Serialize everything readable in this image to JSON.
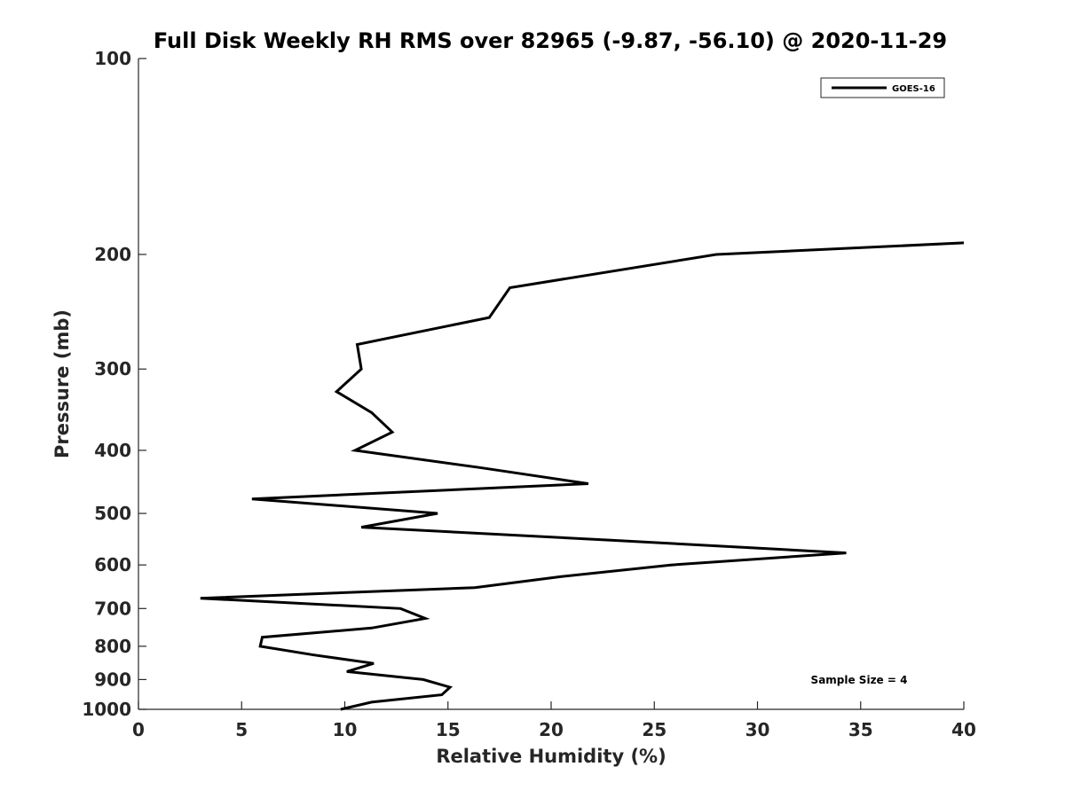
{
  "chart_data": {
    "type": "line",
    "title": "Full Disk Weekly RH RMS over 82965 (-9.87, -56.10) @ 2020-11-29",
    "xlabel": "Relative Humidity (%)",
    "ylabel": "Pressure (mb)",
    "xlim": [
      0,
      40
    ],
    "ylim": [
      100,
      1000
    ],
    "yscale": "log",
    "y_reversed": true,
    "grid": false,
    "legend_position": "top-right",
    "x_ticks": [
      0,
      5,
      10,
      15,
      20,
      25,
      30,
      35,
      40
    ],
    "y_ticks": [
      100,
      200,
      300,
      400,
      500,
      600,
      700,
      800,
      900,
      1000
    ],
    "annotation": "Sample Size = 4",
    "series": [
      {
        "name": "GOES-16",
        "color": "#000000",
        "points": [
          {
            "x": 40.0,
            "y": 192
          },
          {
            "x": 28.0,
            "y": 200
          },
          {
            "x": 18.0,
            "y": 225
          },
          {
            "x": 17.0,
            "y": 250
          },
          {
            "x": 10.6,
            "y": 275
          },
          {
            "x": 10.8,
            "y": 300
          },
          {
            "x": 9.6,
            "y": 325
          },
          {
            "x": 11.3,
            "y": 350
          },
          {
            "x": 12.3,
            "y": 375
          },
          {
            "x": 10.5,
            "y": 400
          },
          {
            "x": 16.5,
            "y": 425
          },
          {
            "x": 21.8,
            "y": 450
          },
          {
            "x": 5.5,
            "y": 475
          },
          {
            "x": 14.5,
            "y": 500
          },
          {
            "x": 10.8,
            "y": 525
          },
          {
            "x": 23.0,
            "y": 550
          },
          {
            "x": 34.3,
            "y": 575
          },
          {
            "x": 25.8,
            "y": 600
          },
          {
            "x": 20.5,
            "y": 625
          },
          {
            "x": 16.3,
            "y": 650
          },
          {
            "x": 3.0,
            "y": 675
          },
          {
            "x": 12.7,
            "y": 700
          },
          {
            "x": 13.9,
            "y": 725
          },
          {
            "x": 11.3,
            "y": 750
          },
          {
            "x": 6.0,
            "y": 775
          },
          {
            "x": 5.9,
            "y": 800
          },
          {
            "x": 8.5,
            "y": 825
          },
          {
            "x": 11.4,
            "y": 850
          },
          {
            "x": 10.1,
            "y": 875
          },
          {
            "x": 13.8,
            "y": 900
          },
          {
            "x": 15.1,
            "y": 925
          },
          {
            "x": 14.7,
            "y": 950
          },
          {
            "x": 11.3,
            "y": 975
          },
          {
            "x": 9.8,
            "y": 1000
          }
        ]
      }
    ]
  }
}
